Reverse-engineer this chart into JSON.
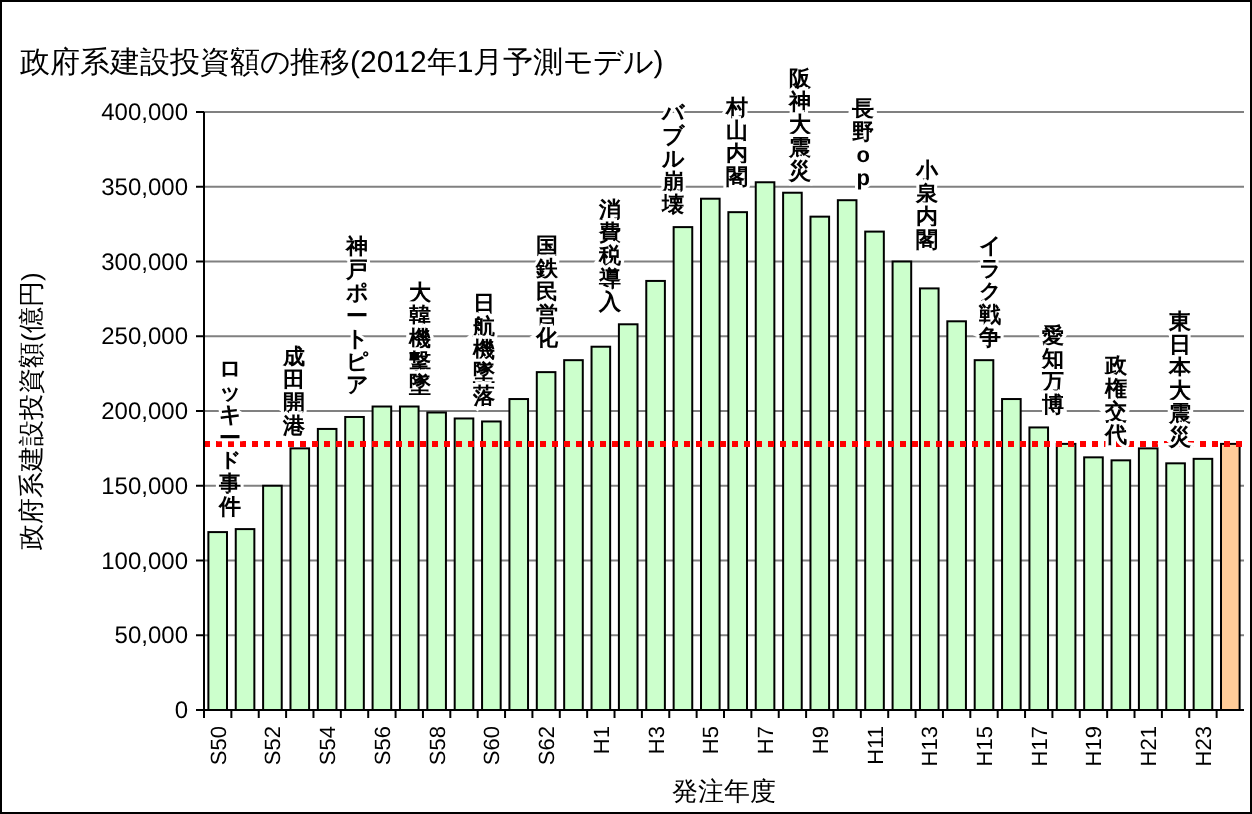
{
  "chart_data": {
    "type": "bar",
    "title": "政府系建設投資額の推移(2012年1月予測モデル)",
    "xlabel": "発注年度",
    "ylabel": "政府系建設投資額(億円)",
    "categories": [
      "S50",
      null,
      "S52",
      null,
      "S54",
      null,
      "S56",
      null,
      "S58",
      null,
      "S60",
      null,
      "S62",
      null,
      "H1",
      null,
      "H3",
      null,
      "H5",
      null,
      "H7",
      null,
      "H9",
      null,
      "H11",
      null,
      "H13",
      null,
      "H15",
      null,
      "H17",
      null,
      "H19",
      null,
      "H21",
      null,
      "H23",
      null
    ],
    "values": [
      119000,
      121000,
      150000,
      175000,
      188000,
      196000,
      203000,
      203000,
      199000,
      195000,
      193000,
      208000,
      226000,
      234000,
      243000,
      258000,
      287000,
      323000,
      342000,
      333000,
      353000,
      346000,
      330000,
      341000,
      320000,
      300000,
      282000,
      260000,
      234000,
      208000,
      189000,
      178000,
      169000,
      167000,
      175000,
      165000,
      168000,
      178000
    ],
    "colors": [
      "#ccffcc",
      "#ccffcc",
      "#ccffcc",
      "#ccffcc",
      "#ccffcc",
      "#ccffcc",
      "#ccffcc",
      "#ccffcc",
      "#ccffcc",
      "#ccffcc",
      "#ccffcc",
      "#ccffcc",
      "#ccffcc",
      "#ccffcc",
      "#ccffcc",
      "#ccffcc",
      "#ccffcc",
      "#ccffcc",
      "#ccffcc",
      "#ccffcc",
      "#ccffcc",
      "#ccffcc",
      "#ccffcc",
      "#ccffcc",
      "#ccffcc",
      "#ccffcc",
      "#ccffcc",
      "#ccffcc",
      "#ccffcc",
      "#ccffcc",
      "#ccffcc",
      "#ccffcc",
      "#ccffcc",
      "#ccffcc",
      "#ccffcc",
      "#ccffcc",
      "#ccffcc",
      "#ffcc99"
    ],
    "ylim": [
      0,
      400000
    ],
    "yticks": [
      {
        "value": 0,
        "label": "0"
      },
      {
        "value": 50000,
        "label": "50,000"
      },
      {
        "value": 100000,
        "label": "100,000"
      },
      {
        "value": 150000,
        "label": "150,000"
      },
      {
        "value": 200000,
        "label": "200,000"
      },
      {
        "value": 250000,
        "label": "250,000"
      },
      {
        "value": 300000,
        "label": "300,000"
      },
      {
        "value": 350000,
        "label": "350,000"
      },
      {
        "value": 400000,
        "label": "400,000"
      }
    ],
    "grid": "y",
    "ref_lines": [
      {
        "axis": "y",
        "value": 178000,
        "color": "#ff0000",
        "line_style": "dotted"
      }
    ],
    "annotations": [
      "ロッキード事件",
      "成田開港",
      "神戸ポートピア",
      "大韓機撃墜",
      "日航機墜落",
      "国鉄民営化",
      "消費税導入",
      "バブル崩壊",
      "村山内閣",
      "阪神大震災",
      "長野op",
      "小泉内閣",
      "イラク戦争",
      "愛知万博",
      "政権交代",
      "東日本大震災"
    ]
  }
}
